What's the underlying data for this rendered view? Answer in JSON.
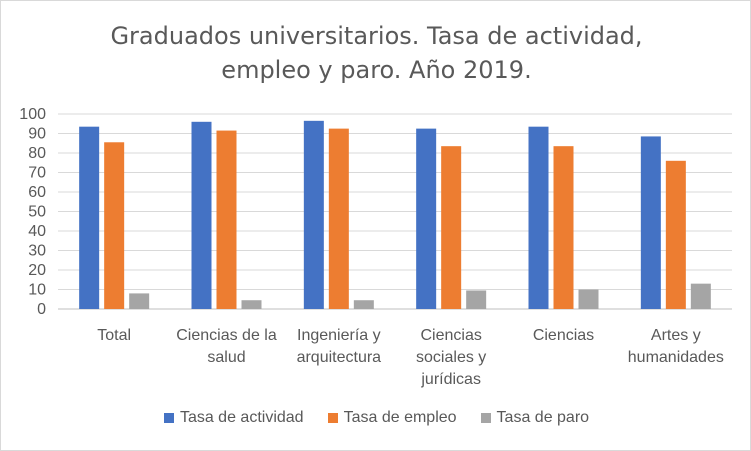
{
  "chart_data": {
    "type": "bar",
    "title_lines": [
      "Graduados universitarios. Tasa de actividad,",
      "empleo y paro. Año 2019."
    ],
    "categories": [
      [
        "Total"
      ],
      [
        "Ciencias de la",
        "salud"
      ],
      [
        "Ingeniería y",
        "arquitectura"
      ],
      [
        "Ciencias",
        "sociales y",
        "jurídicas"
      ],
      [
        "Ciencias"
      ],
      [
        "Artes y",
        "humanidades"
      ]
    ],
    "series": [
      {
        "name": "Tasa de actividad",
        "color": "#4472c4",
        "values": [
          93.5,
          96,
          96.5,
          92.5,
          93.5,
          88.5
        ]
      },
      {
        "name": "Tasa de empleo",
        "color": "#ed7d31",
        "values": [
          85.5,
          91.5,
          92.5,
          83.5,
          83.5,
          76
        ]
      },
      {
        "name": "Tasa de paro",
        "color": "#a5a5a5",
        "values": [
          8,
          4.5,
          4.5,
          9.5,
          10,
          13
        ]
      }
    ],
    "ylim": [
      0,
      100
    ],
    "yticks": [
      0,
      10,
      20,
      30,
      40,
      50,
      60,
      70,
      80,
      90,
      100
    ],
    "grid": true,
    "legend_position": "bottom"
  }
}
